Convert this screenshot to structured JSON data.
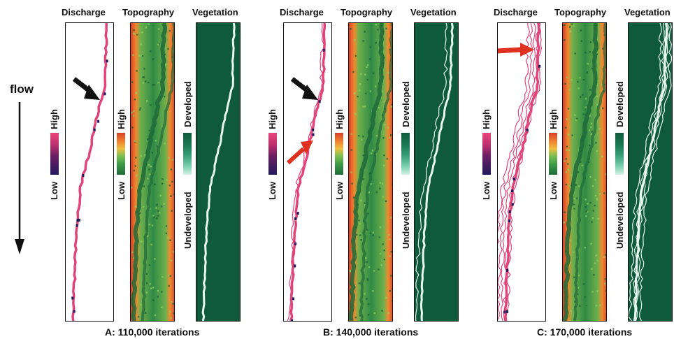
{
  "flow_label": "flow",
  "column_titles": {
    "discharge": "Discharge",
    "topography": "Topography",
    "vegetation": "Vegetation"
  },
  "scale_labels": {
    "high": "High",
    "low": "Low",
    "developed": "Developed",
    "undeveloped": "Undeveloped"
  },
  "panels": [
    {
      "caption": "A: 110,000 iterations",
      "iterations": 110000
    },
    {
      "caption": "B: 140,000 iterations",
      "iterations": 140000
    },
    {
      "caption": "C: 170,000 iterations",
      "iterations": 170000
    }
  ],
  "colors": {
    "discharge_channel": "#e0457a",
    "discharge_high_flow": "#1e1a5e",
    "topography_high": "#d8402a",
    "topography_low": "#1f6a3a",
    "vegetation_field": "#0f5a3c",
    "vegetation_undeveloped": "#e8f8f0",
    "arrow_black": "#111111",
    "arrow_red": "#e03020"
  },
  "annotations": {
    "black_arrows": "panels A and B",
    "red_arrows": "panels B and C"
  }
}
